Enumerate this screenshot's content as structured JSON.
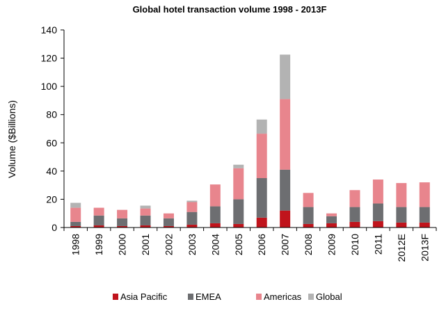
{
  "chart_data": {
    "type": "bar",
    "stacked": true,
    "title": "Global hotel transaction volume 1998 - 2013F",
    "xlabel": "",
    "ylabel": "Volume ($Billions)",
    "ylim": [
      0,
      140
    ],
    "yticks": [
      0,
      20,
      40,
      60,
      80,
      100,
      120,
      140
    ],
    "grid": false,
    "legend_position": "bottom",
    "categories": [
      "1998",
      "1999",
      "2000",
      "2001",
      "2002",
      "2003",
      "2004",
      "2005",
      "2006",
      "2007",
      "2008",
      "2009",
      "2010",
      "2011",
      "2012E",
      "2013F"
    ],
    "series": [
      {
        "name": "Asia Pacific",
        "color": "#c0141c",
        "values": [
          1,
          1.5,
          1,
          1.5,
          1,
          2,
          3,
          2.5,
          7,
          12,
          2.5,
          3,
          4,
          4.5,
          3.5,
          3.5
        ]
      },
      {
        "name": "EMEA",
        "color": "#6d6e71",
        "values": [
          3,
          7,
          5.5,
          7,
          5.5,
          9,
          12,
          17.5,
          28,
          29,
          12,
          5,
          10.5,
          12.5,
          11,
          11
        ]
      },
      {
        "name": "Americas",
        "color": "#e8858d",
        "values": [
          10,
          5.5,
          6,
          5,
          3.5,
          7,
          15.5,
          22,
          31.5,
          50,
          10,
          2,
          12,
          17,
          17,
          17.5
        ]
      },
      {
        "name": "Global",
        "color": "#b3b3b3",
        "values": [
          3.5,
          0,
          0,
          2,
          0,
          1,
          0,
          2.5,
          10,
          31.5,
          0,
          0,
          0,
          0,
          0,
          0
        ]
      }
    ]
  }
}
